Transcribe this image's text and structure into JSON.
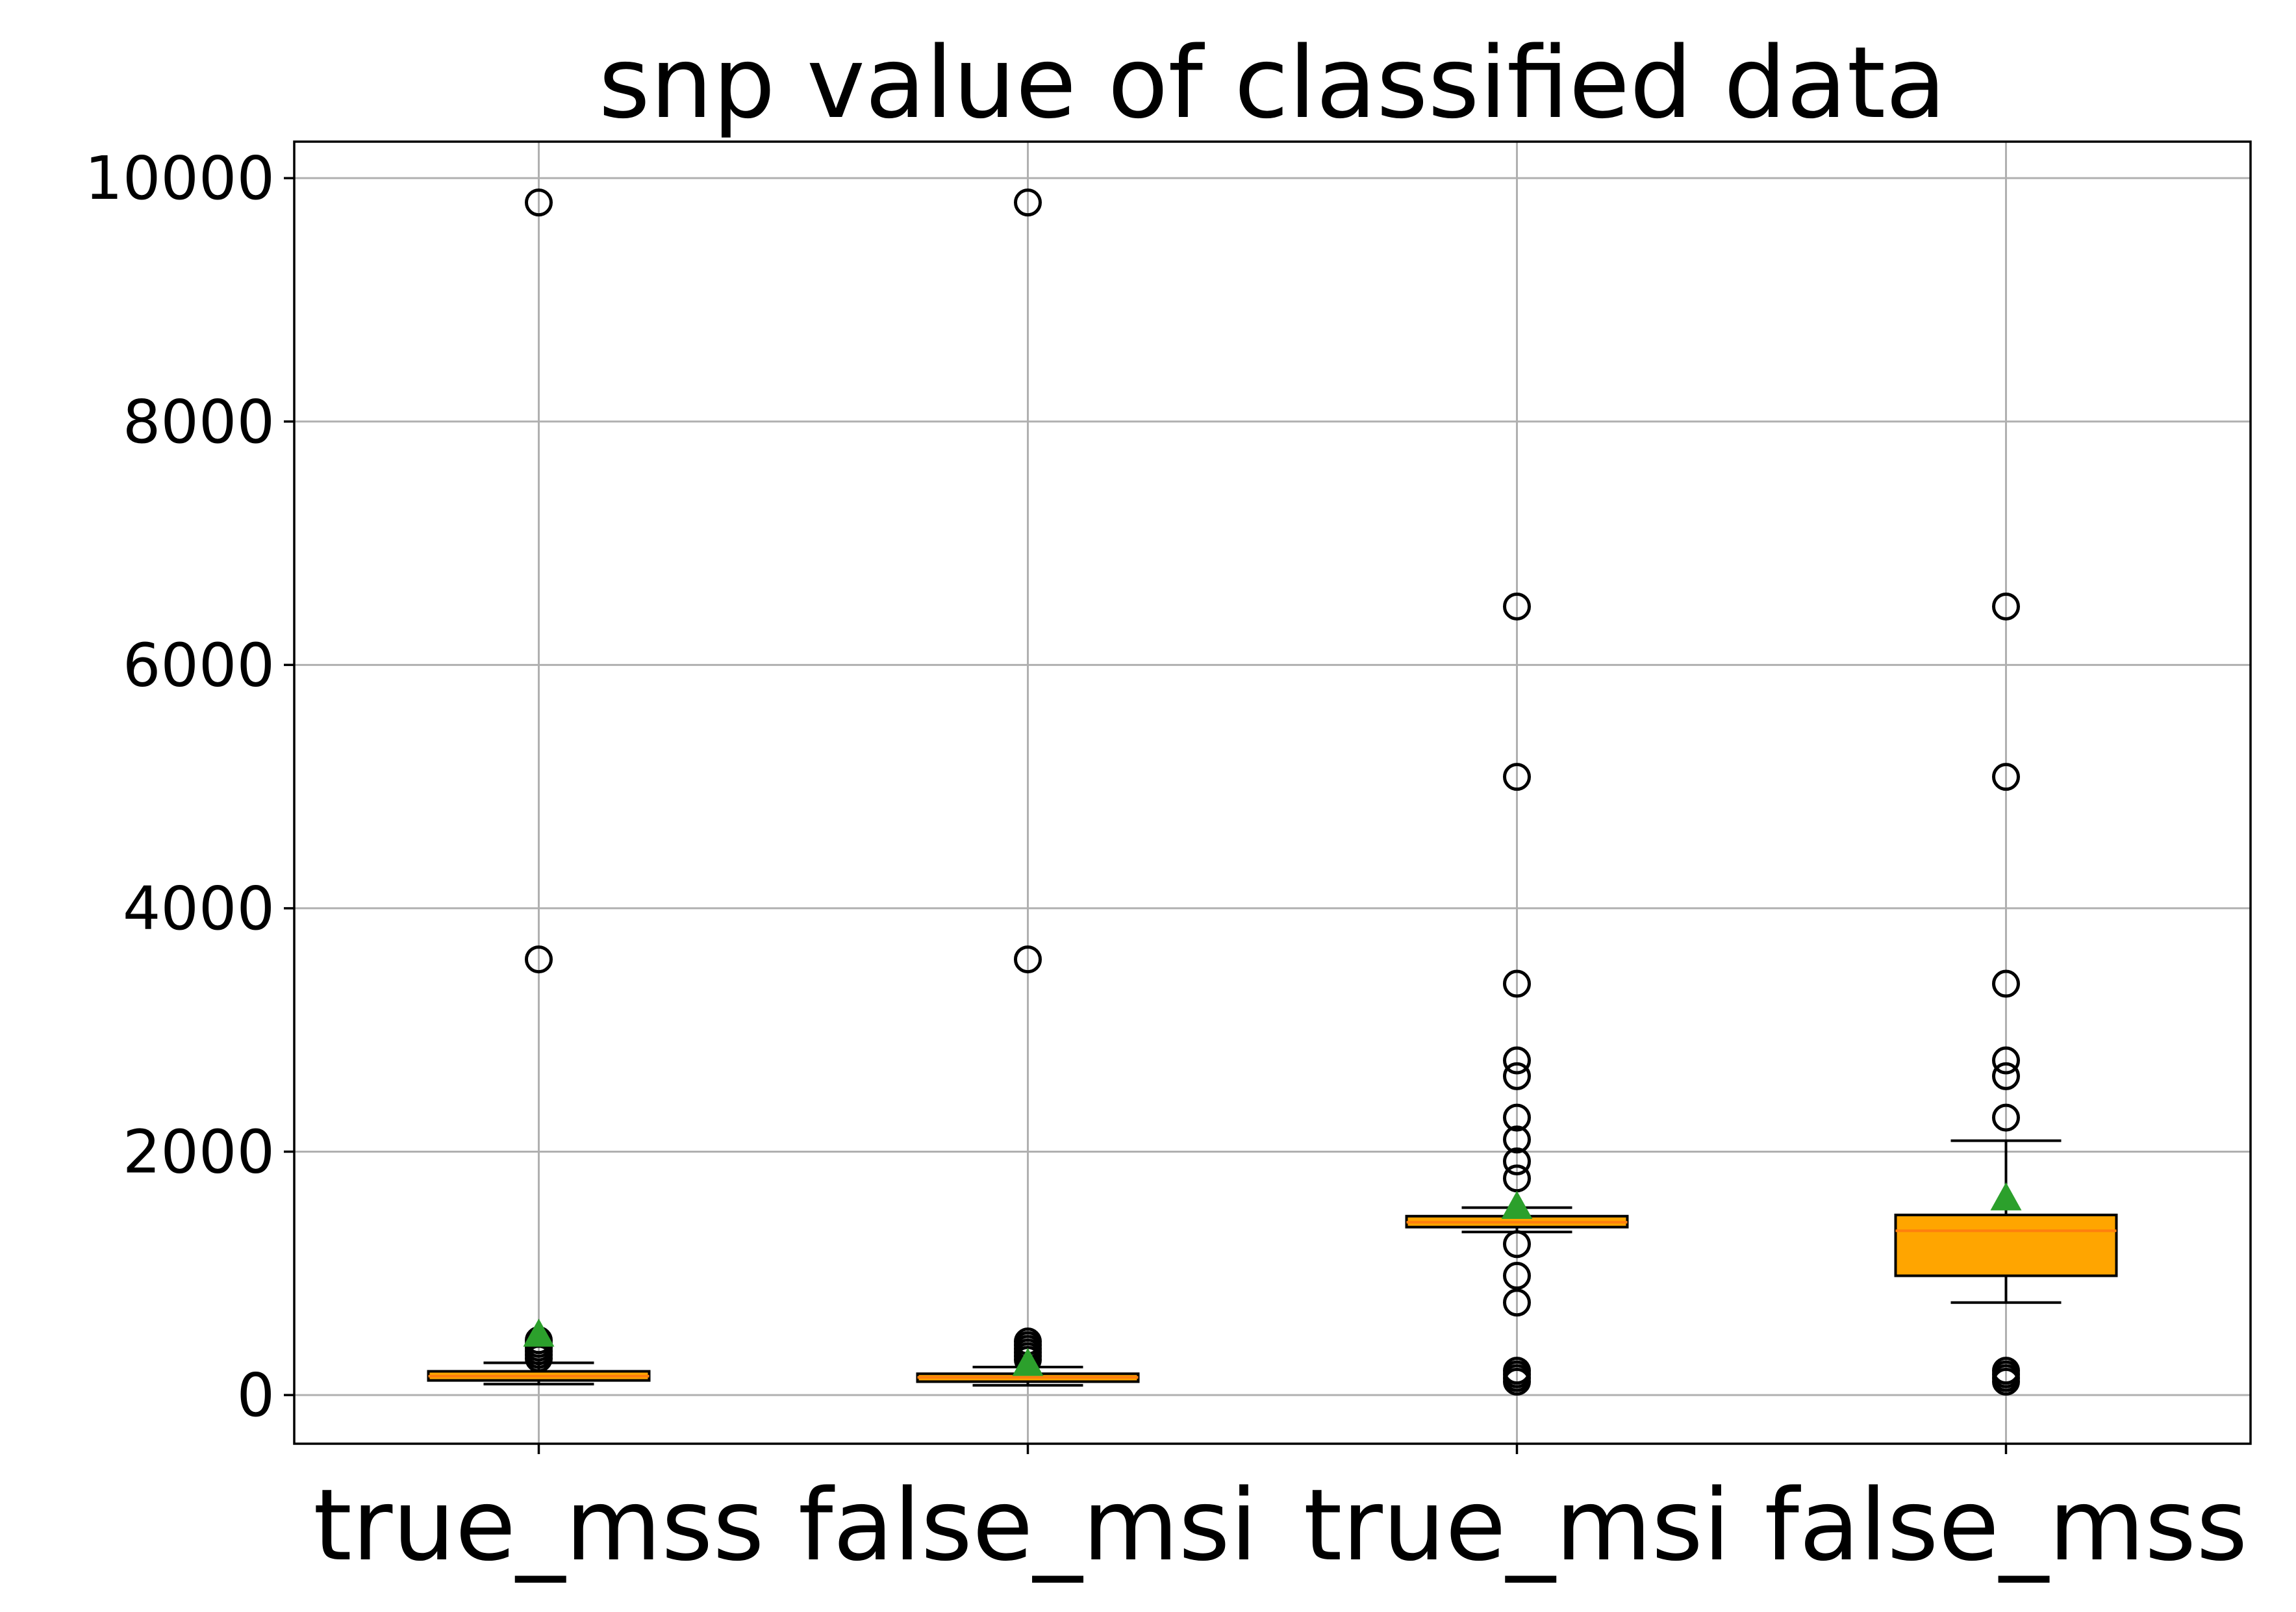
{
  "chart_data": {
    "type": "box",
    "title": "snp value of classified data",
    "xlabel": "",
    "ylabel": "",
    "ylim": [
      -400,
      10300
    ],
    "yticks": [
      0,
      2000,
      4000,
      6000,
      8000,
      10000
    ],
    "ytick_labels": [
      "0",
      "2000",
      "4000",
      "6000",
      "8000",
      "10000"
    ],
    "grid": true,
    "show_means": true,
    "colors": {
      "box_fill": "#ffa500",
      "median": "#ff7f0e",
      "mean_marker": "#2ca02c",
      "grid": "#b0b0b0",
      "outline": "#000000"
    },
    "categories": [
      "true_mss",
      "false_msi",
      "true_msi",
      "false_mss"
    ],
    "boxes": [
      {
        "name": "true_mss",
        "whisker_low": 90,
        "q1": 120,
        "median": 155,
        "q3": 195,
        "whisker_high": 265,
        "mean": 500,
        "outliers": [
          9800,
          3580,
          300,
          330,
          360,
          390,
          420,
          450
        ]
      },
      {
        "name": "false_msi",
        "whisker_low": 80,
        "q1": 110,
        "median": 145,
        "q3": 175,
        "whisker_high": 230,
        "mean": 260,
        "outliers": [
          9800,
          3580,
          290,
          320,
          350,
          380,
          410,
          440
        ]
      },
      {
        "name": "true_msi",
        "whisker_low": 1340,
        "q1": 1380,
        "median": 1420,
        "q3": 1470,
        "whisker_high": 1540,
        "mean": 1550,
        "outliers": [
          6480,
          5080,
          3380,
          2750,
          2620,
          2280,
          2100,
          1920,
          1780,
          1240,
          980,
          760,
          200,
          170,
          140,
          110
        ]
      },
      {
        "name": "false_mss",
        "whisker_low": 760,
        "q1": 980,
        "median": 1350,
        "q3": 1480,
        "whisker_high": 2090,
        "mean": 1620,
        "outliers": [
          6480,
          5080,
          3380,
          2750,
          2620,
          2280,
          200,
          170,
          140,
          110
        ]
      }
    ]
  }
}
